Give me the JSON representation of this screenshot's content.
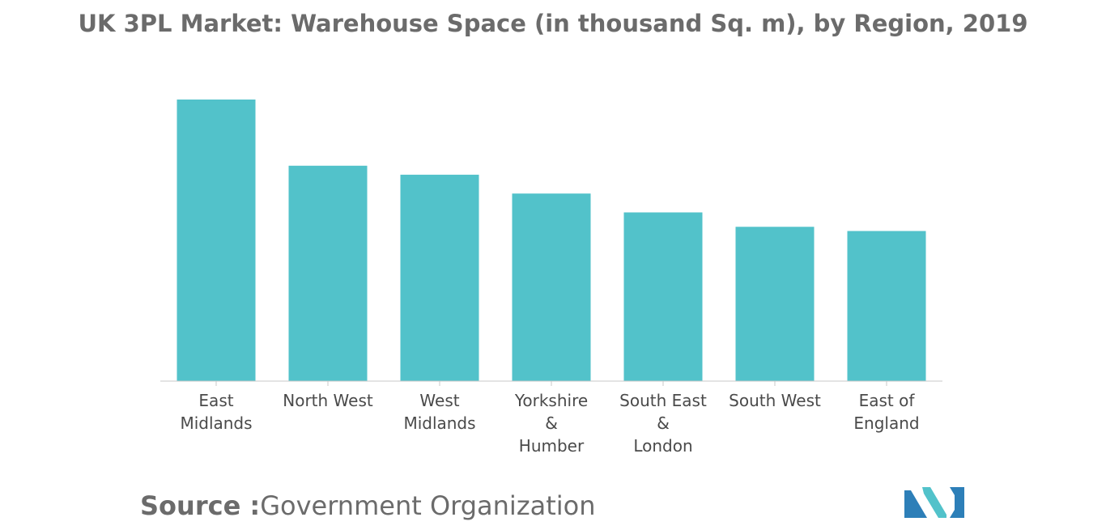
{
  "chart_data": {
    "type": "bar",
    "title": "UK 3PL Market: Warehouse Space (in thousand Sq. m), by Region, 2019",
    "categories": [
      [
        "East",
        "Midlands"
      ],
      [
        "North West"
      ],
      [
        "West",
        "Midlands"
      ],
      [
        "Yorkshire",
        "&",
        "Humber"
      ],
      [
        "South East",
        "&",
        "London"
      ],
      [
        "South West"
      ],
      [
        "East of",
        "England"
      ]
    ],
    "values": [
      100,
      76.5,
      73.3,
      66.6,
      59.9,
      54.8,
      53.3
    ],
    "ylim": [
      0,
      100
    ],
    "grid": false,
    "legend": "none",
    "bar_color": "#52c2ca",
    "axis_color": "#c8c8c8",
    "label_color": "#4a4a4a"
  },
  "source": {
    "label": "Source :",
    "value": "Government Organization"
  },
  "logo": {
    "icon": "mordor-intelligence-logo",
    "colors": [
      "#2d7fb8",
      "#52c2ca"
    ]
  }
}
